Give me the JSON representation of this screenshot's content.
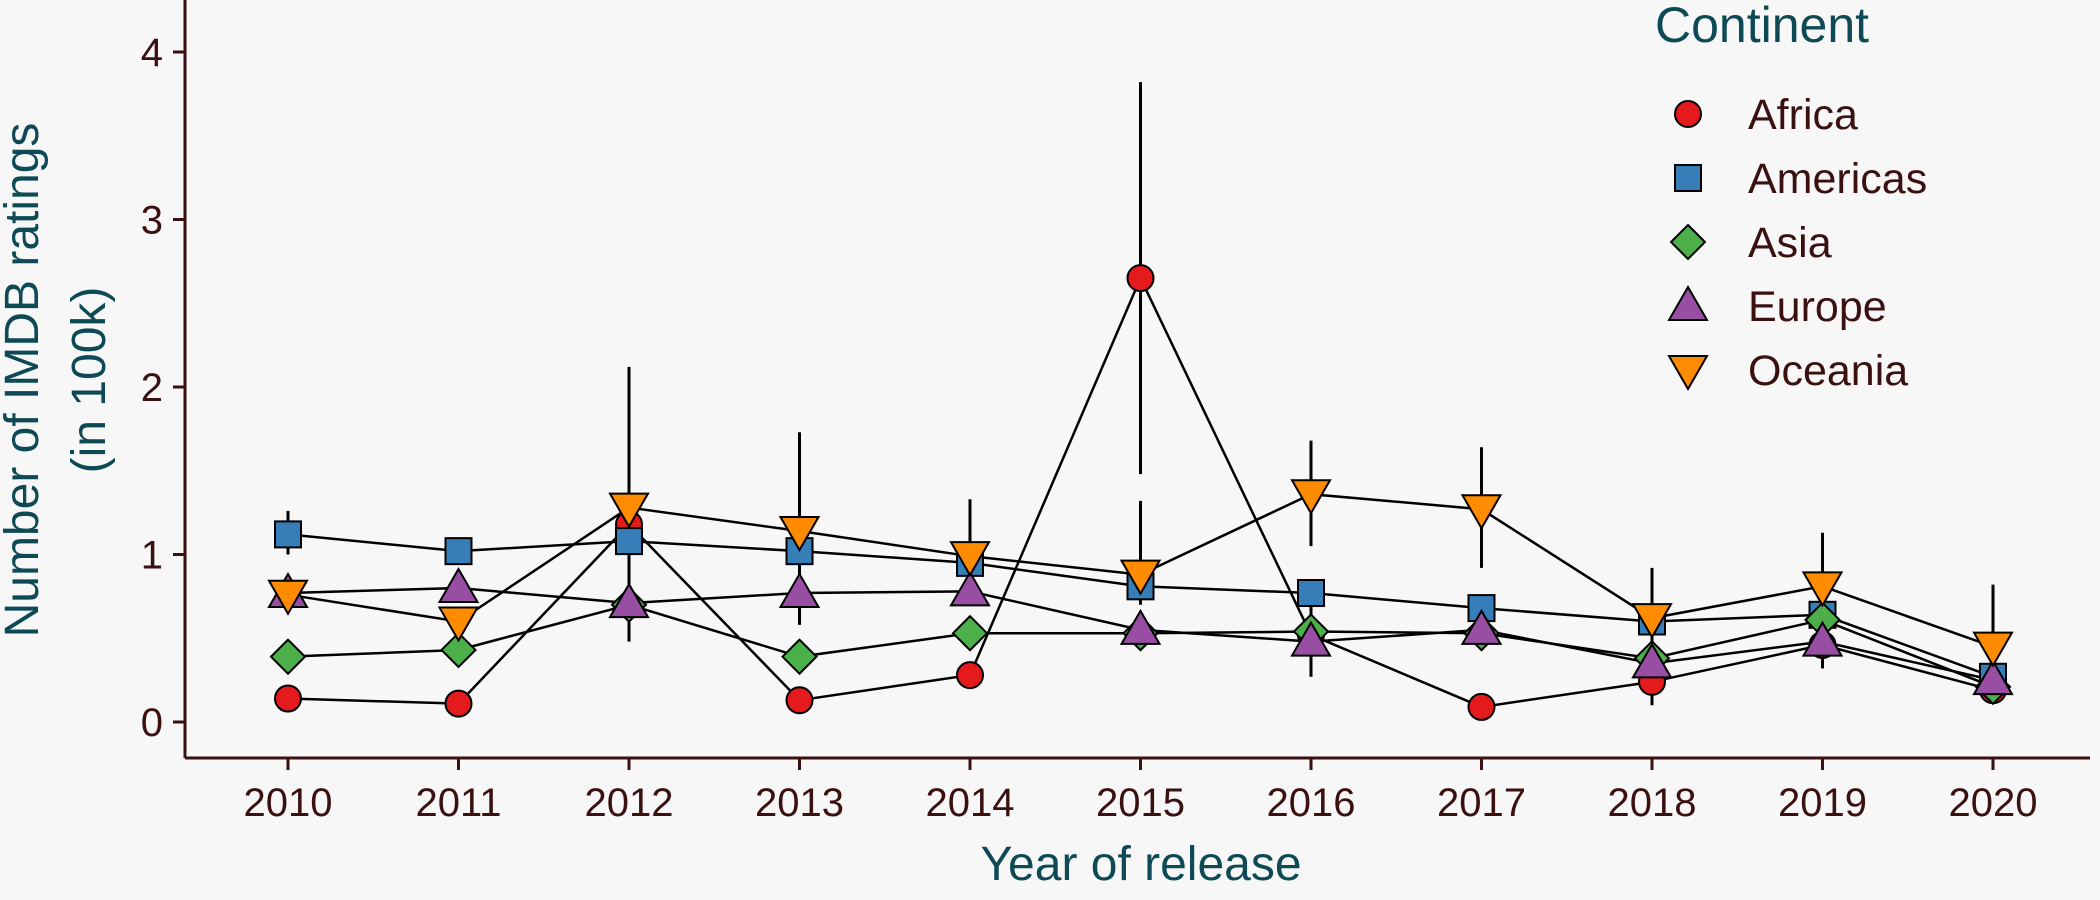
{
  "chart_data": {
    "type": "line",
    "xlabel": "Year of release",
    "ylabel_line1": "Number of IMDB ratings",
    "ylabel_line2": "(in 100k)",
    "x": [
      2010,
      2011,
      2012,
      2013,
      2014,
      2015,
      2016,
      2017,
      2018,
      2019,
      2020
    ],
    "xlim": [
      2009.4,
      2020.4
    ],
    "ylim": [
      -0.2,
      4.3
    ],
    "yticks": [
      0,
      1,
      2,
      3,
      4
    ],
    "grid": false,
    "legend": {
      "title": "Continent",
      "placement": "top-right"
    },
    "series": [
      {
        "name": "Africa",
        "shape": "circle",
        "color": "#e41a1c",
        "values": [
          0.14,
          0.11,
          1.18,
          0.13,
          0.28,
          2.65,
          0.52,
          0.09,
          0.24,
          0.46,
          0.19
        ],
        "err_low": [
          null,
          null,
          0.48,
          null,
          null,
          1.48,
          null,
          null,
          null,
          null,
          null
        ],
        "err_high": [
          null,
          null,
          2.12,
          null,
          null,
          3.82,
          null,
          null,
          null,
          null,
          null
        ]
      },
      {
        "name": "Americas",
        "shape": "square",
        "color": "#377eb8",
        "values": [
          1.12,
          1.02,
          1.08,
          1.02,
          0.95,
          0.81,
          0.77,
          0.68,
          0.6,
          0.64,
          0.27
        ],
        "err_low": [
          1.0,
          null,
          null,
          null,
          null,
          null,
          null,
          null,
          null,
          null,
          null
        ],
        "err_high": [
          1.26,
          null,
          null,
          null,
          null,
          null,
          null,
          null,
          null,
          null,
          null
        ]
      },
      {
        "name": "Asia",
        "shape": "diamond",
        "color": "#4daf4a",
        "values": [
          0.39,
          0.43,
          0.7,
          0.39,
          0.53,
          0.53,
          0.54,
          0.53,
          0.38,
          0.61,
          0.21
        ],
        "err_low": [
          null,
          null,
          null,
          null,
          null,
          null,
          null,
          null,
          null,
          null,
          null
        ],
        "err_high": [
          null,
          null,
          null,
          null,
          null,
          null,
          null,
          null,
          null,
          null,
          null
        ]
      },
      {
        "name": "Europe",
        "shape": "triangle-up",
        "color": "#984ea3",
        "values": [
          0.77,
          0.8,
          0.71,
          0.77,
          0.78,
          0.55,
          0.48,
          0.55,
          0.35,
          0.48,
          0.25
        ],
        "err_low": [
          null,
          null,
          null,
          0.58,
          null,
          null,
          0.27,
          null,
          0.1,
          0.32,
          null
        ],
        "err_high": [
          null,
          null,
          null,
          0.96,
          null,
          null,
          0.7,
          null,
          0.6,
          0.65,
          null
        ]
      },
      {
        "name": "Oceania",
        "shape": "triangle-down",
        "color": "#ff8c00",
        "values": [
          0.76,
          0.6,
          1.28,
          1.14,
          0.99,
          0.88,
          1.36,
          1.27,
          0.62,
          0.81,
          0.45
        ],
        "err_low": [
          null,
          null,
          null,
          1.0,
          0.82,
          0.7,
          1.05,
          0.92,
          0.45,
          0.55,
          0.2
        ],
        "err_high": [
          null,
          null,
          null,
          1.73,
          1.33,
          1.32,
          1.68,
          1.64,
          0.92,
          1.13,
          0.82
        ]
      }
    ]
  }
}
